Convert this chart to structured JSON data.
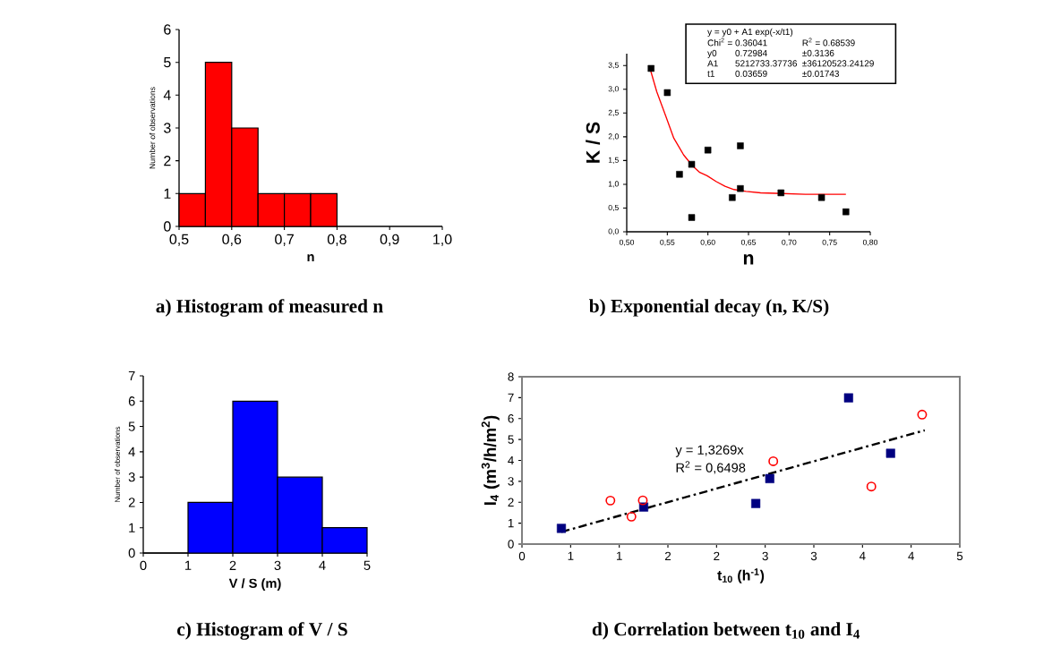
{
  "chart_data": [
    {
      "type": "histogram",
      "title": "a) Histogram of measured n",
      "xlabel": "n",
      "ylabel": "Number of observations",
      "bins": [
        0.5,
        0.55,
        0.6,
        0.65,
        0.7,
        0.75,
        0.8
      ],
      "values": [
        1,
        5,
        3,
        1,
        1,
        1
      ],
      "color": "#ff0000",
      "xlim": [
        0.5,
        1.0
      ],
      "xticks": [
        {
          "value": 0.5,
          "label": "0,5"
        },
        {
          "value": 0.6,
          "label": "0,6"
        },
        {
          "value": 0.7,
          "label": "0,7"
        },
        {
          "value": 0.8,
          "label": "0,8"
        },
        {
          "value": 0.9,
          "label": "0,9"
        },
        {
          "value": 1.0,
          "label": "1,0"
        }
      ],
      "ylim": [
        0,
        6
      ],
      "yticks": [
        0,
        1,
        2,
        3,
        4,
        5,
        6
      ]
    },
    {
      "type": "scatter",
      "title": "b) Exponential decay (n, K/S)",
      "xlabel": "n",
      "ylabel": "K / S",
      "xlim": [
        0.5,
        0.8
      ],
      "xticks": [
        {
          "value": 0.5,
          "label": "0,50"
        },
        {
          "value": 0.55,
          "label": "0,55"
        },
        {
          "value": 0.6,
          "label": "0,60"
        },
        {
          "value": 0.65,
          "label": "0,65"
        },
        {
          "value": 0.7,
          "label": "0,70"
        },
        {
          "value": 0.75,
          "label": "0,75"
        },
        {
          "value": 0.8,
          "label": "0,80"
        }
      ],
      "ylim": [
        0,
        3.75
      ],
      "yticks": [
        {
          "value": 0,
          "label": "0,0"
        },
        {
          "value": 0.5,
          "label": "0,5"
        },
        {
          "value": 1.0,
          "label": "1,0"
        },
        {
          "value": 1.5,
          "label": "1,5"
        },
        {
          "value": 2.0,
          "label": "2,0"
        },
        {
          "value": 2.5,
          "label": "2,5"
        },
        {
          "value": 3.0,
          "label": "3,0"
        },
        {
          "value": 3.5,
          "label": "3,5"
        }
      ],
      "annotations": [
        "y = y0 + A1 exp(-x/t1)",
        "Chi$^{2}$ = 0.36041",
        "R$^{2}$ =  0.68539",
        "y0",
        "0.72984",
        "±0.3136",
        "A1",
        "5212733.37736",
        "±36120523.24129",
        "t1",
        "0.03659",
        "±0.01743"
      ],
      "series": [
        {
          "type": "scatter",
          "color": "#000000",
          "marker": "square",
          "x": [
            0.53,
            0.55,
            0.565,
            0.58,
            0.58,
            0.6,
            0.63,
            0.64,
            0.64,
            0.69,
            0.74,
            0.77
          ],
          "values": [
            3.44,
            2.93,
            1.21,
            1.42,
            0.3,
            1.72,
            0.72,
            1.81,
            0.91,
            0.82,
            0.72,
            0.42
          ]
        },
        {
          "type": "line",
          "color": "#ff0000",
          "x": [
            0.529,
            0.537,
            0.548,
            0.558,
            0.57,
            0.581,
            0.59,
            0.599,
            0.61,
            0.621,
            0.632,
            0.647,
            0.665,
            0.683,
            0.72,
            0.77
          ],
          "values": [
            3.42,
            2.95,
            2.44,
            1.97,
            1.62,
            1.39,
            1.25,
            1.18,
            1.06,
            0.96,
            0.89,
            0.85,
            0.82,
            0.81,
            0.79,
            0.79
          ]
        }
      ]
    },
    {
      "type": "histogram",
      "title": "c) Histogram of V / S",
      "xlabel": "V / S  (m)",
      "ylabel": "Number of observations",
      "bins": [
        0,
        1,
        2,
        3,
        4,
        5
      ],
      "values": [
        0,
        2,
        6,
        3,
        1
      ],
      "color": "#0000ff",
      "xlim": [
        0,
        5
      ],
      "xticks": [
        0,
        1,
        2,
        3,
        4,
        5
      ],
      "ylim": [
        0,
        7
      ],
      "yticks": [
        0,
        1,
        2,
        3,
        4,
        5,
        6,
        7
      ]
    },
    {
      "type": "scatter",
      "title": "d) Correlation between t$_{10}$ and I$_{4}$",
      "xlabel": "t$_{10}$ (h$^{-1}$)",
      "ylabel": "I$_{4}$  (m$^{3}$/h/m$^{2}$)",
      "xlim": [
        0,
        5
      ],
      "xticks": [
        {
          "value": 0,
          "label": "0"
        },
        {
          "value": 0.5556,
          "label": "1"
        },
        {
          "value": 1.1111,
          "label": "1"
        },
        {
          "value": 1.6667,
          "label": "2"
        },
        {
          "value": 2.2222,
          "label": "2"
        },
        {
          "value": 2.7778,
          "label": "3"
        },
        {
          "value": 3.3333,
          "label": "3"
        },
        {
          "value": 3.8889,
          "label": "4"
        },
        {
          "value": 4.4444,
          "label": "4"
        },
        {
          "value": 5,
          "label": "5"
        }
      ],
      "ylim": [
        0,
        8
      ],
      "yticks": [
        0,
        1,
        2,
        3,
        4,
        5,
        6,
        7,
        8
      ],
      "annotations": [
        "y = 1,3269x",
        "R$^{2}$ = 0,6498"
      ],
      "series": [
        {
          "type": "scatter",
          "color": "#000080",
          "marker": "square",
          "x": [
            0.45,
            1.39,
            2.67,
            2.83,
            3.73,
            4.21
          ],
          "values": [
            0.75,
            1.77,
            1.94,
            3.13,
            6.99,
            4.34
          ]
        },
        {
          "type": "scatter",
          "color": "#ff0000",
          "marker": "circle",
          "x": [
            1.01,
            1.25,
            1.38,
            2.87,
            3.99,
            4.57
          ],
          "values": [
            2.08,
            1.31,
            2.09,
            3.96,
            2.75,
            6.19
          ]
        },
        {
          "type": "line",
          "color": "#000000",
          "line_style": "dashed",
          "x": [
            0.45,
            4.6
          ],
          "values": [
            0.58,
            5.44
          ]
        }
      ]
    }
  ]
}
